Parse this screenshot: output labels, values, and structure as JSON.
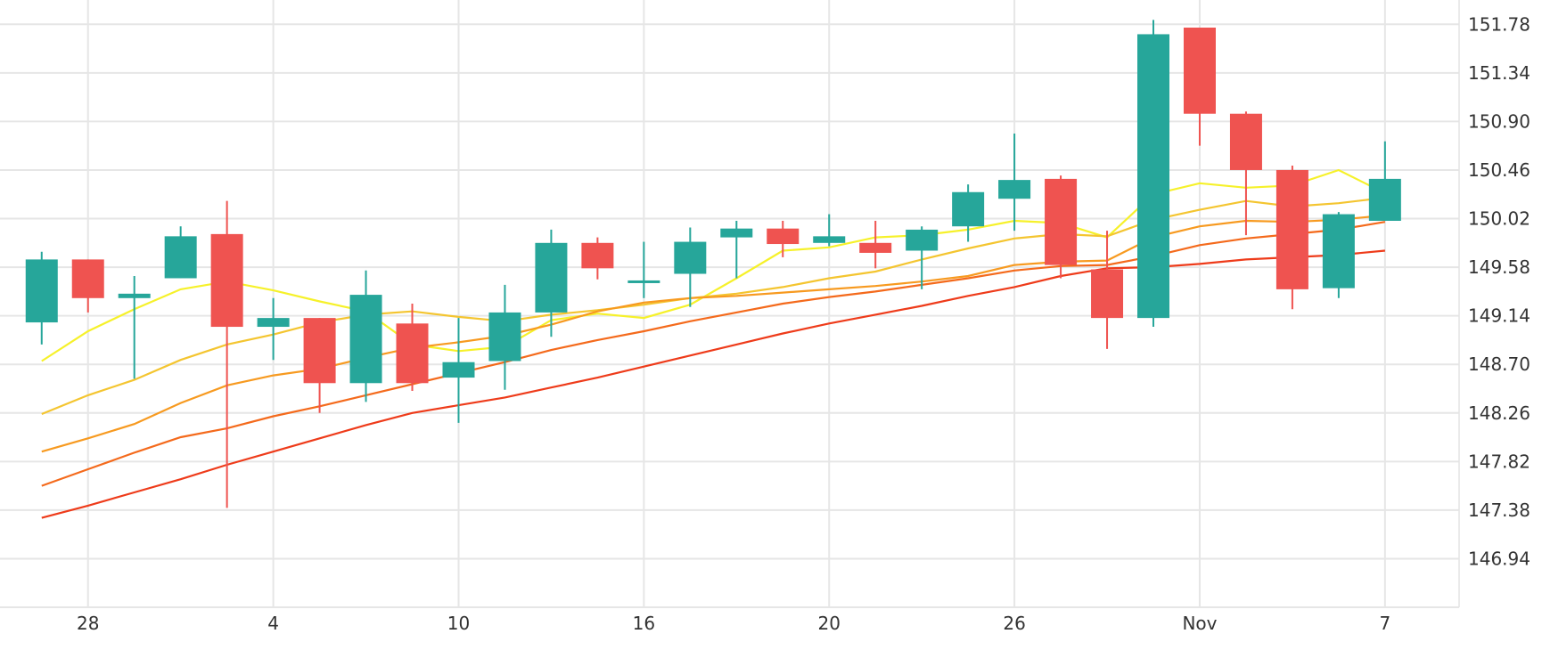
{
  "chart_data": {
    "type": "candlestick",
    "x_tick_labels": [
      "28",
      "4",
      "10",
      "16",
      "20",
      "26",
      "Nov",
      "7"
    ],
    "x_tick_slots": [
      1,
      5,
      9,
      13,
      17,
      21,
      25,
      29
    ],
    "y_tick_labels": [
      "151.78",
      "151.34",
      "150.90",
      "150.46",
      "150.02",
      "149.58",
      "149.14",
      "148.70",
      "148.26",
      "147.82",
      "147.38",
      "146.94"
    ],
    "y_ticks": [
      151.78,
      151.34,
      150.9,
      150.46,
      150.02,
      149.58,
      149.14,
      148.7,
      148.26,
      147.82,
      147.38,
      146.94
    ],
    "ylim": [
      146.5,
      152.0
    ],
    "xlim": [
      -0.9,
      30.6
    ],
    "grid": true,
    "y_axis_position": "right",
    "up_color": "#26a69a",
    "down_color": "#ef5350",
    "candles": [
      {
        "open": 149.08,
        "high": 149.72,
        "low": 148.88,
        "close": 149.65
      },
      {
        "open": 149.65,
        "high": 149.65,
        "low": 149.17,
        "close": 149.3
      },
      {
        "open": 149.3,
        "high": 149.5,
        "low": 148.57,
        "close": 149.34
      },
      {
        "open": 149.48,
        "high": 149.95,
        "low": 149.48,
        "close": 149.86
      },
      {
        "open": 149.88,
        "high": 150.18,
        "low": 147.4,
        "close": 149.04
      },
      {
        "open": 149.04,
        "high": 149.3,
        "low": 148.74,
        "close": 149.12
      },
      {
        "open": 149.12,
        "high": 149.12,
        "low": 148.26,
        "close": 148.53
      },
      {
        "open": 148.53,
        "high": 149.55,
        "low": 148.36,
        "close": 149.33
      },
      {
        "open": 149.07,
        "high": 149.25,
        "low": 148.46,
        "close": 148.53
      },
      {
        "open": 148.58,
        "high": 149.12,
        "low": 148.17,
        "close": 148.72
      },
      {
        "open": 148.73,
        "high": 149.42,
        "low": 148.47,
        "close": 149.17
      },
      {
        "open": 149.17,
        "high": 149.92,
        "low": 148.95,
        "close": 149.8
      },
      {
        "open": 149.8,
        "high": 149.85,
        "low": 149.47,
        "close": 149.57
      },
      {
        "open": 149.46,
        "high": 149.81,
        "low": 149.3,
        "close": 149.46
      },
      {
        "open": 149.52,
        "high": 149.94,
        "low": 149.22,
        "close": 149.81
      },
      {
        "open": 149.85,
        "high": 150.0,
        "low": 149.48,
        "close": 149.93
      },
      {
        "open": 149.93,
        "high": 150.0,
        "low": 149.67,
        "close": 149.79
      },
      {
        "open": 149.8,
        "high": 150.06,
        "low": 149.77,
        "close": 149.86
      },
      {
        "open": 149.8,
        "high": 150.0,
        "low": 149.57,
        "close": 149.71
      },
      {
        "open": 149.73,
        "high": 149.95,
        "low": 149.38,
        "close": 149.92
      },
      {
        "open": 149.95,
        "high": 150.33,
        "low": 149.81,
        "close": 150.26
      },
      {
        "open": 150.2,
        "high": 150.79,
        "low": 149.91,
        "close": 150.37
      },
      {
        "open": 150.38,
        "high": 150.41,
        "low": 149.48,
        "close": 149.6
      },
      {
        "open": 149.56,
        "high": 149.91,
        "low": 148.84,
        "close": 149.12
      },
      {
        "open": 149.12,
        "high": 151.82,
        "low": 149.04,
        "close": 151.69
      },
      {
        "open": 151.75,
        "high": 151.75,
        "low": 150.68,
        "close": 150.97
      },
      {
        "open": 150.97,
        "high": 150.99,
        "low": 149.87,
        "close": 150.46
      },
      {
        "open": 150.46,
        "high": 150.5,
        "low": 149.2,
        "close": 149.38
      },
      {
        "open": 149.39,
        "high": 150.08,
        "low": 149.3,
        "close": 150.06
      },
      {
        "open": 150.0,
        "high": 150.72,
        "low": 150.0,
        "close": 150.38
      }
    ],
    "moving_averages": [
      {
        "color": "#f6f12a",
        "values": [
          148.73,
          149.0,
          149.2,
          149.38,
          149.45,
          149.37,
          149.27,
          149.18,
          148.88,
          148.82,
          148.86,
          149.1,
          149.16,
          149.12,
          149.24,
          149.48,
          149.73,
          149.76,
          149.85,
          149.87,
          149.92,
          150.0,
          149.98,
          149.85,
          150.24,
          150.34,
          150.3,
          150.32,
          150.46,
          150.25
        ]
      },
      {
        "color": "#f4c530",
        "values": [
          148.25,
          148.42,
          148.56,
          148.74,
          148.88,
          148.97,
          149.08,
          149.15,
          149.18,
          149.13,
          149.09,
          149.15,
          149.19,
          149.24,
          149.3,
          149.34,
          149.4,
          149.48,
          149.54,
          149.65,
          149.75,
          149.84,
          149.88,
          149.86,
          150.01,
          150.1,
          150.18,
          150.13,
          150.16,
          150.21
        ]
      },
      {
        "color": "#f79a20",
        "values": [
          147.91,
          148.03,
          148.16,
          148.35,
          148.51,
          148.6,
          148.66,
          148.76,
          148.85,
          148.9,
          148.96,
          149.06,
          149.18,
          149.26,
          149.3,
          149.32,
          149.35,
          149.38,
          149.41,
          149.45,
          149.5,
          149.6,
          149.63,
          149.64,
          149.85,
          149.95,
          150.0,
          149.99,
          150.01,
          150.05
        ]
      },
      {
        "color": "#f46a1c",
        "values": [
          147.6,
          147.75,
          147.9,
          148.04,
          148.12,
          148.23,
          148.32,
          148.42,
          148.52,
          148.62,
          148.72,
          148.83,
          148.92,
          149.0,
          149.09,
          149.17,
          149.25,
          149.31,
          149.36,
          149.42,
          149.48,
          149.55,
          149.59,
          149.6,
          149.68,
          149.78,
          149.84,
          149.88,
          149.92,
          149.99
        ]
      },
      {
        "color": "#ee3b1a",
        "values": [
          147.31,
          147.42,
          147.54,
          147.66,
          147.79,
          147.91,
          148.03,
          148.15,
          148.26,
          148.33,
          148.4,
          148.49,
          148.58,
          148.68,
          148.78,
          148.88,
          148.98,
          149.07,
          149.15,
          149.23,
          149.32,
          149.4,
          149.5,
          149.57,
          149.58,
          149.61,
          149.65,
          149.67,
          149.69,
          149.73
        ]
      }
    ]
  }
}
